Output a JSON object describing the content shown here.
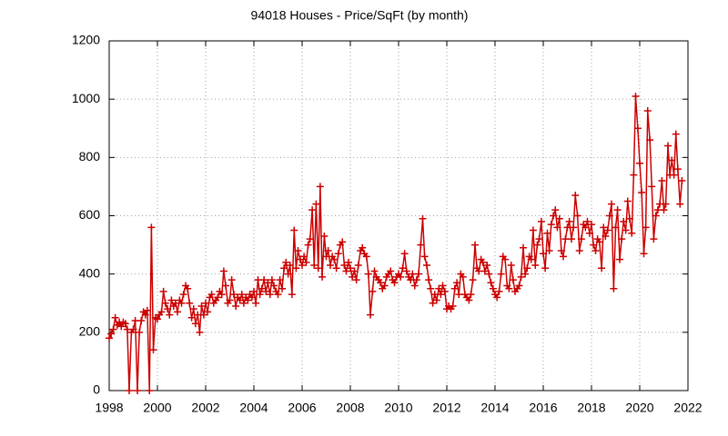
{
  "chart_data": {
    "type": "line",
    "title": "94018 Houses - Price/SqFt (by month)",
    "color": "#cc0000",
    "grid": true,
    "marker": "+",
    "xlim": [
      1998,
      2022
    ],
    "xticks": [
      1998,
      2000,
      2002,
      2004,
      2006,
      2008,
      2010,
      2012,
      2014,
      2016,
      2018,
      2020,
      2022
    ],
    "ylim": [
      0,
      1200
    ],
    "yticks": [
      0,
      200,
      400,
      600,
      800,
      1000,
      1200
    ],
    "x": [
      1998,
      1998.08,
      1998.17,
      1998.25,
      1998.33,
      1998.42,
      1998.5,
      1998.58,
      1998.67,
      1998.75,
      1998.83,
      1998.92,
      1999,
      1999.08,
      1999.17,
      1999.25,
      1999.33,
      1999.42,
      1999.5,
      1999.58,
      1999.67,
      1999.75,
      1999.83,
      1999.92,
      2000,
      2000.08,
      2000.17,
      2000.25,
      2000.33,
      2000.42,
      2000.5,
      2000.58,
      2000.67,
      2000.75,
      2000.83,
      2000.92,
      2001,
      2001.08,
      2001.17,
      2001.25,
      2001.33,
      2001.42,
      2001.5,
      2001.58,
      2001.67,
      2001.75,
      2001.83,
      2001.92,
      2002,
      2002.08,
      2002.17,
      2002.25,
      2002.33,
      2002.42,
      2002.5,
      2002.58,
      2002.67,
      2002.75,
      2002.83,
      2002.92,
      2003,
      2003.08,
      2003.17,
      2003.25,
      2003.33,
      2003.42,
      2003.5,
      2003.58,
      2003.67,
      2003.75,
      2003.83,
      2003.92,
      2004,
      2004.08,
      2004.17,
      2004.25,
      2004.33,
      2004.42,
      2004.5,
      2004.58,
      2004.67,
      2004.75,
      2004.83,
      2004.92,
      2005,
      2005.08,
      2005.17,
      2005.25,
      2005.33,
      2005.42,
      2005.5,
      2005.58,
      2005.67,
      2005.75,
      2005.83,
      2005.92,
      2006,
      2006.08,
      2006.17,
      2006.25,
      2006.33,
      2006.42,
      2006.5,
      2006.58,
      2006.67,
      2006.75,
      2006.83,
      2006.92,
      2007,
      2007.08,
      2007.17,
      2007.25,
      2007.33,
      2007.42,
      2007.5,
      2007.58,
      2007.67,
      2007.75,
      2007.83,
      2007.92,
      2008,
      2008.08,
      2008.17,
      2008.25,
      2008.33,
      2008.42,
      2008.5,
      2008.58,
      2008.67,
      2008.75,
      2008.83,
      2008.92,
      2009,
      2009.08,
      2009.17,
      2009.25,
      2009.33,
      2009.42,
      2009.5,
      2009.58,
      2009.67,
      2009.75,
      2009.83,
      2009.92,
      2010,
      2010.08,
      2010.17,
      2010.25,
      2010.33,
      2010.42,
      2010.5,
      2010.58,
      2010.67,
      2010.75,
      2010.83,
      2010.92,
      2011,
      2011.08,
      2011.17,
      2011.25,
      2011.33,
      2011.42,
      2011.5,
      2011.58,
      2011.67,
      2011.75,
      2011.83,
      2011.92,
      2012,
      2012.08,
      2012.17,
      2012.25,
      2012.33,
      2012.42,
      2012.5,
      2012.58,
      2012.67,
      2012.75,
      2012.83,
      2012.92,
      2013,
      2013.08,
      2013.17,
      2013.25,
      2013.33,
      2013.42,
      2013.5,
      2013.58,
      2013.67,
      2013.75,
      2013.83,
      2013.92,
      2014,
      2014.08,
      2014.17,
      2014.25,
      2014.33,
      2014.42,
      2014.5,
      2014.58,
      2014.67,
      2014.75,
      2014.83,
      2014.92,
      2015,
      2015.08,
      2015.17,
      2015.25,
      2015.33,
      2015.42,
      2015.5,
      2015.58,
      2015.67,
      2015.75,
      2015.83,
      2015.92,
      2016,
      2016.08,
      2016.17,
      2016.25,
      2016.33,
      2016.42,
      2016.5,
      2016.58,
      2016.67,
      2016.75,
      2016.83,
      2016.92,
      2017,
      2017.08,
      2017.17,
      2017.25,
      2017.33,
      2017.42,
      2017.5,
      2017.58,
      2017.67,
      2017.75,
      2017.83,
      2017.92,
      2018,
      2018.08,
      2018.17,
      2018.25,
      2018.33,
      2018.42,
      2018.5,
      2018.58,
      2018.67,
      2018.75,
      2018.83,
      2018.92,
      2019,
      2019.08,
      2019.17,
      2019.25,
      2019.33,
      2019.42,
      2019.5,
      2019.58,
      2019.67,
      2019.75,
      2019.83,
      2019.92,
      2020,
      2020.08,
      2020.17,
      2020.25,
      2020.33,
      2020.42,
      2020.5,
      2020.58,
      2020.67,
      2020.75,
      2020.83,
      2020.92,
      2021,
      2021.08,
      2021.17,
      2021.25,
      2021.33,
      2021.42,
      2021.5,
      2021.58,
      2021.67,
      2021.75
    ],
    "values": [
      180,
      195,
      210,
      250,
      225,
      235,
      220,
      235,
      230,
      210,
      0,
      200,
      210,
      240,
      0,
      200,
      240,
      270,
      260,
      275,
      0,
      560,
      140,
      250,
      245,
      260,
      270,
      340,
      300,
      280,
      260,
      310,
      290,
      300,
      270,
      310,
      300,
      330,
      360,
      350,
      300,
      250,
      280,
      230,
      260,
      200,
      290,
      260,
      300,
      270,
      320,
      330,
      300,
      310,
      320,
      340,
      330,
      410,
      360,
      300,
      310,
      380,
      330,
      290,
      320,
      310,
      330,
      300,
      320,
      310,
      330,
      320,
      340,
      300,
      380,
      330,
      350,
      380,
      340,
      370,
      330,
      380,
      360,
      340,
      330,
      380,
      350,
      420,
      440,
      400,
      430,
      330,
      550,
      420,
      480,
      450,
      430,
      460,
      440,
      500,
      520,
      620,
      430,
      640,
      420,
      700,
      390,
      530,
      460,
      480,
      430,
      460,
      450,
      420,
      470,
      500,
      510,
      430,
      410,
      440,
      420,
      390,
      410,
      380,
      430,
      480,
      490,
      470,
      460,
      400,
      260,
      340,
      410,
      390,
      380,
      370,
      350,
      360,
      390,
      400,
      410,
      380,
      370,
      390,
      400,
      390,
      420,
      470,
      410,
      390,
      380,
      400,
      360,
      380,
      400,
      500,
      590,
      460,
      430,
      380,
      350,
      300,
      330,
      310,
      350,
      330,
      360,
      340,
      280,
      290,
      280,
      290,
      350,
      370,
      330,
      400,
      390,
      330,
      320,
      310,
      330,
      380,
      500,
      420,
      410,
      450,
      440,
      410,
      430,
      400,
      370,
      350,
      330,
      320,
      340,
      400,
      460,
      450,
      360,
      350,
      430,
      380,
      340,
      350,
      360,
      390,
      490,
      400,
      420,
      460,
      450,
      550,
      430,
      500,
      520,
      580,
      470,
      420,
      540,
      480,
      570,
      600,
      620,
      560,
      590,
      480,
      460,
      520,
      560,
      580,
      520,
      560,
      670,
      600,
      480,
      520,
      570,
      560,
      580,
      540,
      570,
      500,
      480,
      520,
      510,
      420,
      560,
      530,
      550,
      600,
      640,
      350,
      560,
      620,
      450,
      520,
      580,
      550,
      650,
      590,
      540,
      740,
      1010,
      900,
      780,
      680,
      470,
      560,
      960,
      860,
      700,
      520,
      600,
      620,
      640,
      720,
      620,
      640,
      840,
      740,
      790,
      740,
      880,
      760,
      640,
      720
    ]
  }
}
